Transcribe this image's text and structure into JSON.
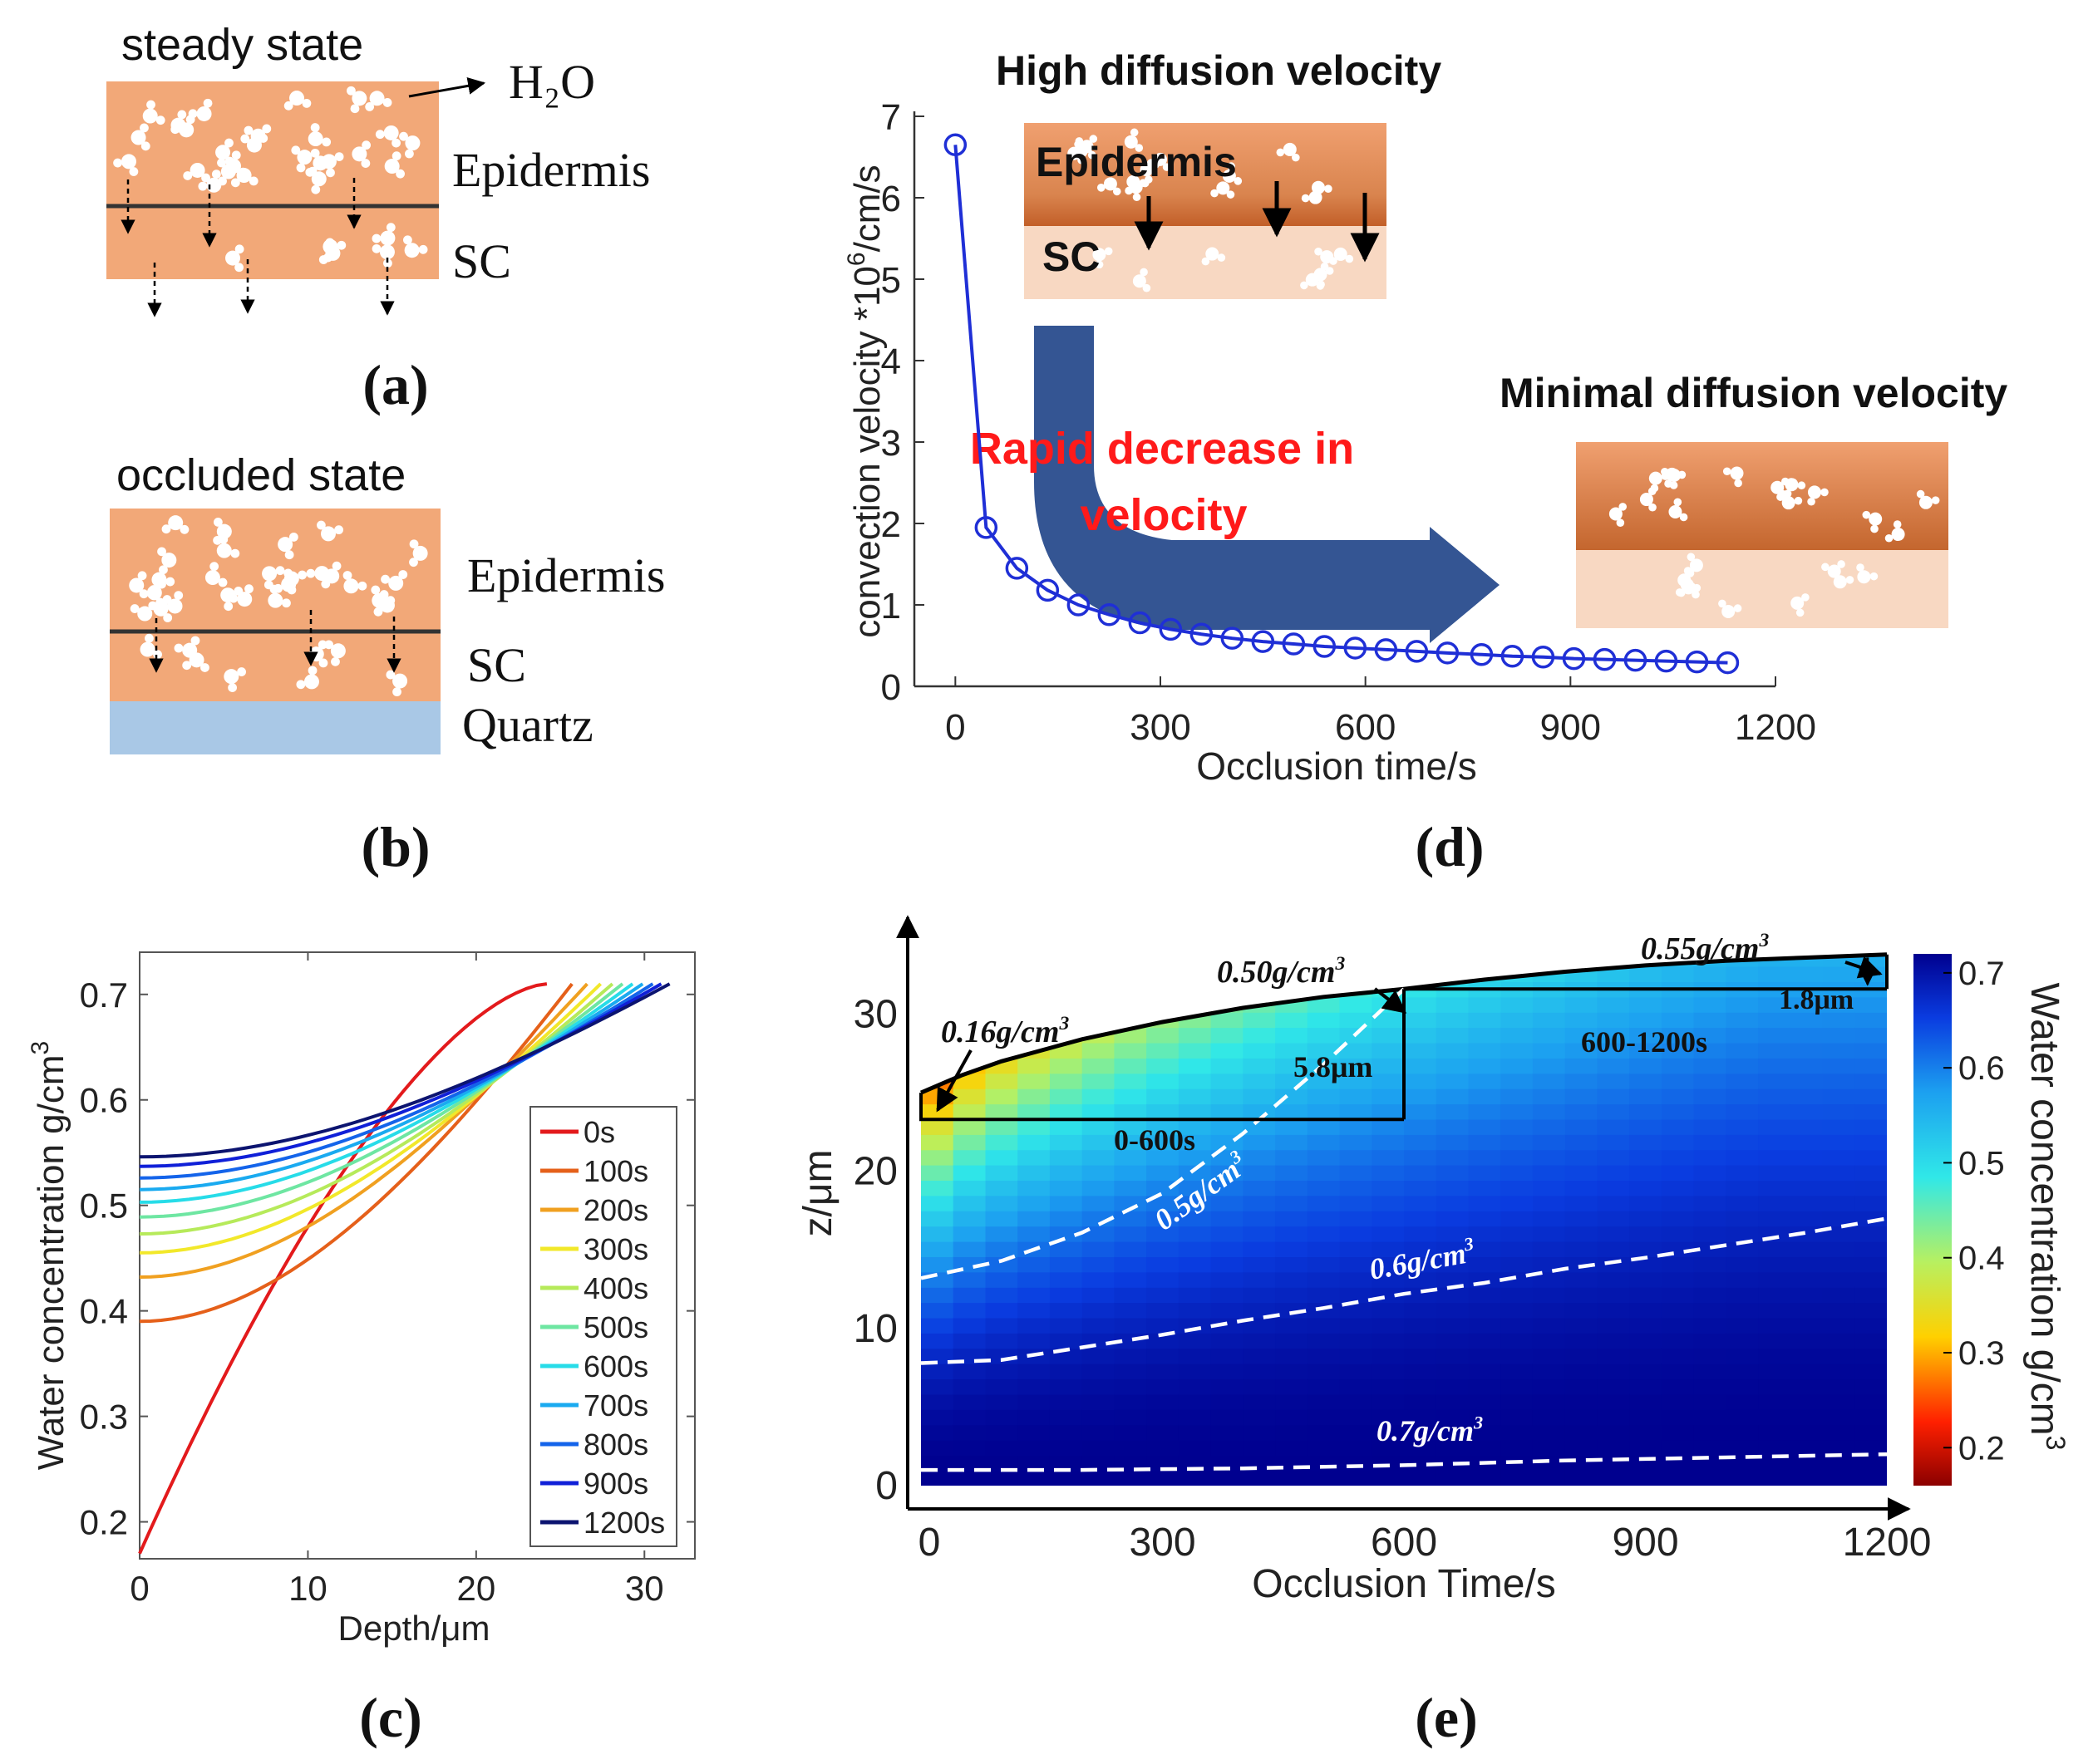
{
  "colors": {
    "skin": "#f2a878",
    "skin_light": "#f8d8c2",
    "skin_dark": "#c46a38",
    "quartz": "#a9c8e6",
    "line_blue": "#1f2fd6",
    "arrow_blue": "#274a8c",
    "annotation_red": "#ff1a1a"
  },
  "panels": {
    "a": {
      "label": "(a)",
      "title": "steady state",
      "h2o": "H₂O",
      "layer_top": "Epidermis",
      "layer_bottom": "SC"
    },
    "b": {
      "label": "(b)",
      "title": "occluded state",
      "layer_top": "Epidermis",
      "layer_mid": "SC",
      "layer_bottom": "Quartz"
    },
    "d": {
      "label": "(d)",
      "inset_high_title": "High diffusion velocity",
      "inset_high_epidermis": "Epidermis",
      "inset_high_sc": "SC",
      "inset_low_title": "Minimal diffusion velocity",
      "annotation_line1": "Rapid decrease in",
      "annotation_line2": "velocity"
    },
    "c": {
      "label": "(c)"
    },
    "e": {
      "label": "(e)",
      "ann_016": "0.16g/cm",
      "ann_050": "0.50g/cm",
      "ann_055": "0.55g/cm",
      "ann_58um": "5.8μm",
      "ann_18um": "1.8μm",
      "ann_0_600": "0-600s",
      "ann_600_1200": "600-1200s",
      "contour_05": "0.5g/cm",
      "contour_06": "0.6g/cm",
      "contour_07": "0.7g/cm",
      "superscript": "3"
    }
  },
  "chart_data": [
    {
      "id": "d",
      "type": "line",
      "xlabel": "Occlusion time/s",
      "ylabel_main": "convection velocity *10",
      "ylabel_sup": "6",
      "ylabel_tail": "/cm/s",
      "xlim": [
        -60,
        1200
      ],
      "ylim": [
        0,
        7
      ],
      "xticks": [
        "0",
        "300",
        "600",
        "900",
        "1200"
      ],
      "yticks": [
        "0",
        "1",
        "2",
        "3",
        "4",
        "5",
        "6",
        "7"
      ],
      "x": [
        0,
        45,
        90,
        135,
        180,
        225,
        270,
        315,
        360,
        405,
        450,
        495,
        540,
        585,
        630,
        675,
        720,
        770,
        815,
        860,
        905,
        950,
        995,
        1040,
        1085,
        1130
      ],
      "y": [
        6.65,
        1.95,
        1.45,
        1.18,
        1.0,
        0.88,
        0.78,
        0.7,
        0.64,
        0.59,
        0.55,
        0.52,
        0.49,
        0.47,
        0.45,
        0.43,
        0.41,
        0.39,
        0.37,
        0.36,
        0.34,
        0.33,
        0.32,
        0.31,
        0.3,
        0.29
      ]
    },
    {
      "id": "c",
      "type": "line",
      "xlabel": "Depth/μm",
      "ylabel_main": "Water concentration g/cm",
      "ylabel_sup": "3",
      "xlim": [
        0,
        33
      ],
      "ylim": [
        0.165,
        0.74
      ],
      "xticks": [
        "0",
        "10",
        "20",
        "30"
      ],
      "yticks": [
        "0.2",
        "0.3",
        "0.4",
        "0.5",
        "0.6",
        "0.7"
      ],
      "series": [
        {
          "name": "0s",
          "color": "#e31a1c",
          "start": 0.17,
          "end_x": 24.2,
          "end": 0.71
        },
        {
          "name": "100s",
          "color": "#e5601a",
          "start": 0.39,
          "end_x": 25.7,
          "end": 0.71
        },
        {
          "name": "200s",
          "color": "#f0a020",
          "start": 0.432,
          "end_x": 26.6,
          "end": 0.71
        },
        {
          "name": "300s",
          "color": "#f2e82a",
          "start": 0.455,
          "end_x": 27.4,
          "end": 0.71
        },
        {
          "name": "400s",
          "color": "#b6ea5a",
          "start": 0.473,
          "end_x": 28.1,
          "end": 0.71
        },
        {
          "name": "500s",
          "color": "#6ee6a2",
          "start": 0.489,
          "end_x": 28.7,
          "end": 0.71
        },
        {
          "name": "600s",
          "color": "#27dce8",
          "start": 0.503,
          "end_x": 29.3,
          "end": 0.71
        },
        {
          "name": "700s",
          "color": "#1aaaf0",
          "start": 0.515,
          "end_x": 29.9,
          "end": 0.71
        },
        {
          "name": "800s",
          "color": "#1464ea",
          "start": 0.526,
          "end_x": 30.5,
          "end": 0.71
        },
        {
          "name": "900s",
          "color": "#1020d8",
          "start": 0.537,
          "end_x": 31.0,
          "end": 0.71
        },
        {
          "name": "1200s",
          "color": "#0c1470",
          "start": 0.546,
          "end_x": 31.5,
          "end": 0.71
        }
      ]
    },
    {
      "id": "e",
      "type": "heatmap",
      "xlabel": "Occlusion Time/s",
      "ylabel": "z/μm",
      "xlim": [
        0,
        1200
      ],
      "ylim": [
        0,
        35
      ],
      "xticks": [
        "0",
        "300",
        "600",
        "900",
        "1200"
      ],
      "yticks": [
        "0",
        "10",
        "20",
        "30"
      ],
      "colorbar_label_main": "Water concentration g/cm",
      "colorbar_label_sup": "3",
      "colorbar_range": [
        0.16,
        0.72
      ],
      "colorbar_ticks": [
        "0.2",
        "0.3",
        "0.4",
        "0.5",
        "0.6",
        "0.7"
      ],
      "surface": {
        "t": [
          0,
          50,
          100,
          200,
          300,
          400,
          500,
          600,
          700,
          800,
          900,
          1000,
          1100,
          1200
        ],
        "z": [
          25.0,
          26.1,
          27.0,
          28.4,
          29.5,
          30.4,
          31.1,
          31.6,
          32.2,
          32.7,
          33.1,
          33.4,
          33.6,
          33.8
        ]
      },
      "contours": [
        {
          "label": "0.5",
          "t": [
            0,
            100,
            200,
            300,
            400,
            500,
            600
          ],
          "z": [
            13.2,
            14.3,
            16.1,
            18.6,
            22.4,
            26.8,
            31.6
          ]
        },
        {
          "label": "0.6",
          "t": [
            0,
            100,
            200,
            300,
            400,
            500,
            600,
            700,
            800,
            900,
            1000,
            1100,
            1200
          ],
          "z": [
            7.8,
            8.0,
            8.8,
            9.6,
            10.5,
            11.3,
            12.2,
            12.9,
            13.8,
            14.5,
            15.3,
            16.1,
            17.0
          ]
        },
        {
          "label": "0.7",
          "t": [
            0,
            200,
            400,
            600,
            800,
            1000,
            1200
          ],
          "z": [
            1.0,
            1.0,
            1.1,
            1.3,
            1.6,
            1.8,
            2.0
          ]
        }
      ]
    }
  ]
}
